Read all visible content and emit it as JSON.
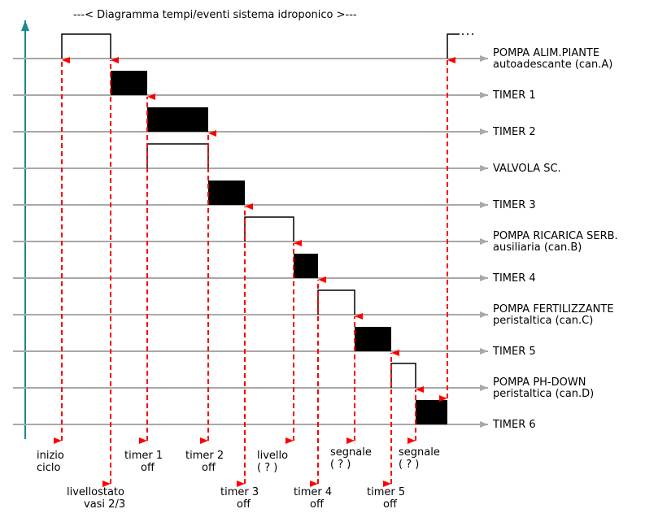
{
  "title": "---< Diagramma tempi/eventi sistema idroponico >---",
  "colors": {
    "axis": "#1a8a8a",
    "baseline": "#a8a8a8",
    "event_line": "#ff0000",
    "pulse_fill_timer": "#000000",
    "pulse_outline": "#000000"
  },
  "channels": [
    {
      "label_lines": [
        "POMPA ALIM.PIANTE",
        "autoadescante (can.A)"
      ],
      "pulse_style": "outline",
      "pulses": [
        [
          1,
          3
        ]
      ],
      "repeat_from": 11
    },
    {
      "label_lines": [
        "TIMER 1"
      ],
      "pulse_style": "filled",
      "pulses": [
        [
          3,
          4
        ]
      ]
    },
    {
      "label_lines": [
        "TIMER 2"
      ],
      "pulse_style": "filled",
      "pulses": [
        [
          4,
          6
        ]
      ]
    },
    {
      "label_lines": [
        "VALVOLA SC."
      ],
      "pulse_style": "outline",
      "pulses": [
        [
          4,
          6
        ]
      ]
    },
    {
      "label_lines": [
        "TIMER 3"
      ],
      "pulse_style": "filled",
      "pulses": [
        [
          6,
          7
        ]
      ]
    },
    {
      "label_lines": [
        "POMPA RICARICA SERB.",
        "ausiliaria (can.B)"
      ],
      "pulse_style": "outline",
      "pulses": [
        [
          7,
          9
        ]
      ]
    },
    {
      "label_lines": [
        "TIMER 4"
      ],
      "pulse_style": "filled",
      "pulses": [
        [
          9,
          10
        ]
      ]
    },
    {
      "label_lines": [
        "POMPA FERTILIZZANTE",
        "peristaltica (can.C)"
      ],
      "pulse_style": "outline",
      "pulses": [
        [
          10,
          12
        ]
      ]
    },
    {
      "label_lines": [
        "TIMER 5"
      ],
      "pulse_style": "filled",
      "pulses": [
        [
          12,
          13
        ]
      ]
    },
    {
      "label_lines": [
        "POMPA PH-DOWN",
        "peristaltica (can.D)"
      ],
      "pulse_style": "outline",
      "pulses": [
        [
          13,
          14
        ]
      ]
    },
    {
      "label_lines": [
        "TIMER 6"
      ],
      "pulse_style": "filled",
      "pulses": [
        [
          14,
          15
        ]
      ]
    }
  ],
  "events": [
    {
      "id": "inizio-ciclo",
      "label_lines": [
        "inizio",
        "ciclo"
      ],
      "label_row": 1,
      "up_to_channel": 0
    },
    {
      "id": "livellostato",
      "label_lines": [
        "livellostato",
        "vasi 2/3"
      ],
      "label_row": 2,
      "up_to_channel": 0
    },
    {
      "id": "timer1-off",
      "label_lines": [
        "timer 1",
        "off"
      ],
      "label_row": 1,
      "up_to_channel": 1
    },
    {
      "id": "timer2-off",
      "label_lines": [
        "timer 2",
        "off"
      ],
      "label_row": 1,
      "up_to_channel": 2
    },
    {
      "id": "timer3-off",
      "label_lines": [
        "timer 3",
        "off"
      ],
      "label_row": 2,
      "up_to_channel": 4
    },
    {
      "id": "livello",
      "label_lines": [
        "livello",
        "( ? )"
      ],
      "label_row": 1,
      "up_to_channel": 5
    },
    {
      "id": "timer4-off",
      "label_lines": [
        "timer 4",
        "off"
      ],
      "label_row": 2,
      "up_to_channel": 6
    },
    {
      "id": "segnale-1",
      "label_lines": [
        "segnale",
        "( ? )"
      ],
      "label_row": 1,
      "up_to_channel": 7
    },
    {
      "id": "timer5-off",
      "label_lines": [
        "timer 5",
        "off"
      ],
      "label_row": 2,
      "up_to_channel": 8
    },
    {
      "id": "segnale-2",
      "label_lines": [
        "segnale",
        "( ? )"
      ],
      "label_row": 1,
      "up_to_channel": 9
    },
    {
      "id": "timer6-off",
      "label_lines": [],
      "label_row": 0,
      "up_to_channel": 0,
      "down_from_channel": 10
    }
  ]
}
